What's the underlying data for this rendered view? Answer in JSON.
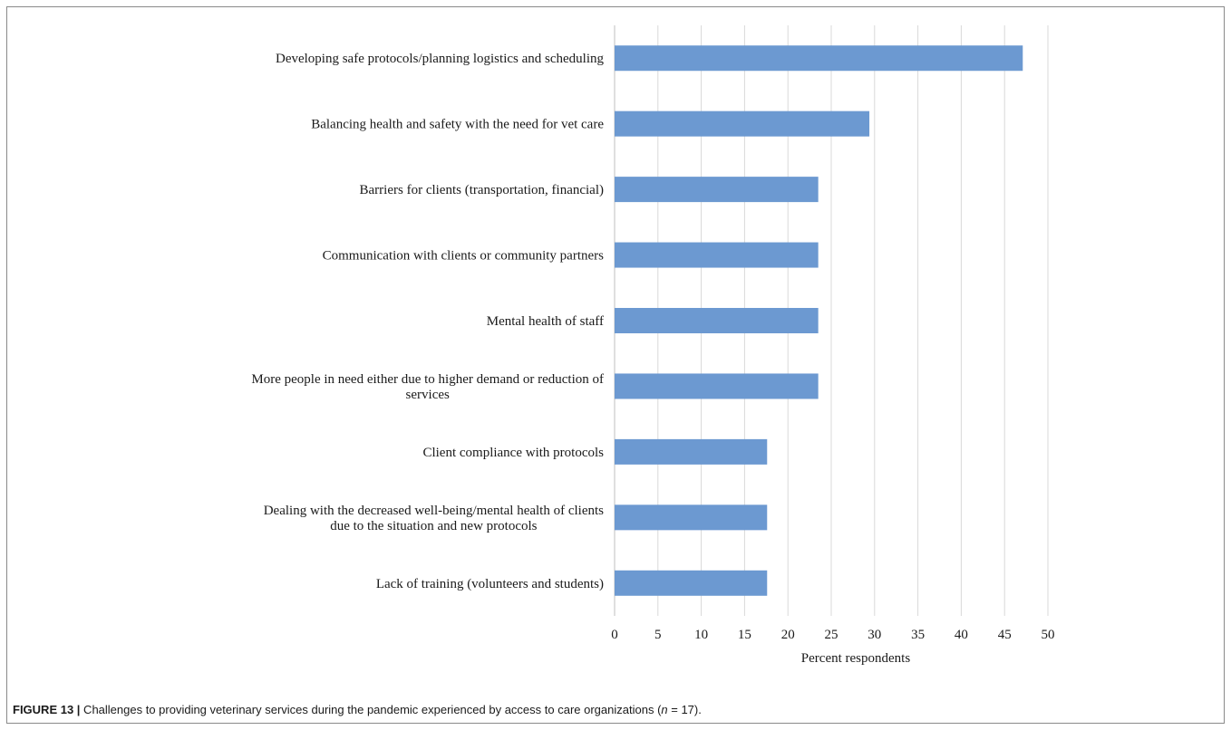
{
  "caption": {
    "label": "FIGURE 13 |",
    "text_before": " Challenges to providing veterinary services during the pandemic experienced by access to care organizations (",
    "n_symbol": "n",
    "text_after": " = 17)."
  },
  "colors": {
    "bar": "#6c99d1",
    "grid": "#d9d9d9",
    "text": "#1a1a1a"
  },
  "chart_data": {
    "type": "bar",
    "orientation": "horizontal",
    "categories": [
      [
        "Developing safe protocols/planning logistics and scheduling"
      ],
      [
        "Balancing health and safety with the need for vet care"
      ],
      [
        "Barriers for clients (transportation, financial)"
      ],
      [
        "Communication with clients or community partners"
      ],
      [
        "Mental health of staff"
      ],
      [
        "More people in need either due to higher demand or reduction of",
        "services"
      ],
      [
        "Client compliance with protocols"
      ],
      [
        "Dealing with the decreased well-being/mental health of clients",
        "due to the situation and new protocols"
      ],
      [
        "Lack of training (volunteers and students)"
      ]
    ],
    "values": [
      47.1,
      29.4,
      23.5,
      23.5,
      23.5,
      23.5,
      17.6,
      17.6,
      17.6
    ],
    "xlabel": "Percent respondents",
    "xlim": [
      0,
      50
    ],
    "xticks": [
      "0",
      "5",
      "10",
      "15",
      "20",
      "25",
      "30",
      "35",
      "40",
      "45",
      "50"
    ],
    "grid": "vertical"
  }
}
